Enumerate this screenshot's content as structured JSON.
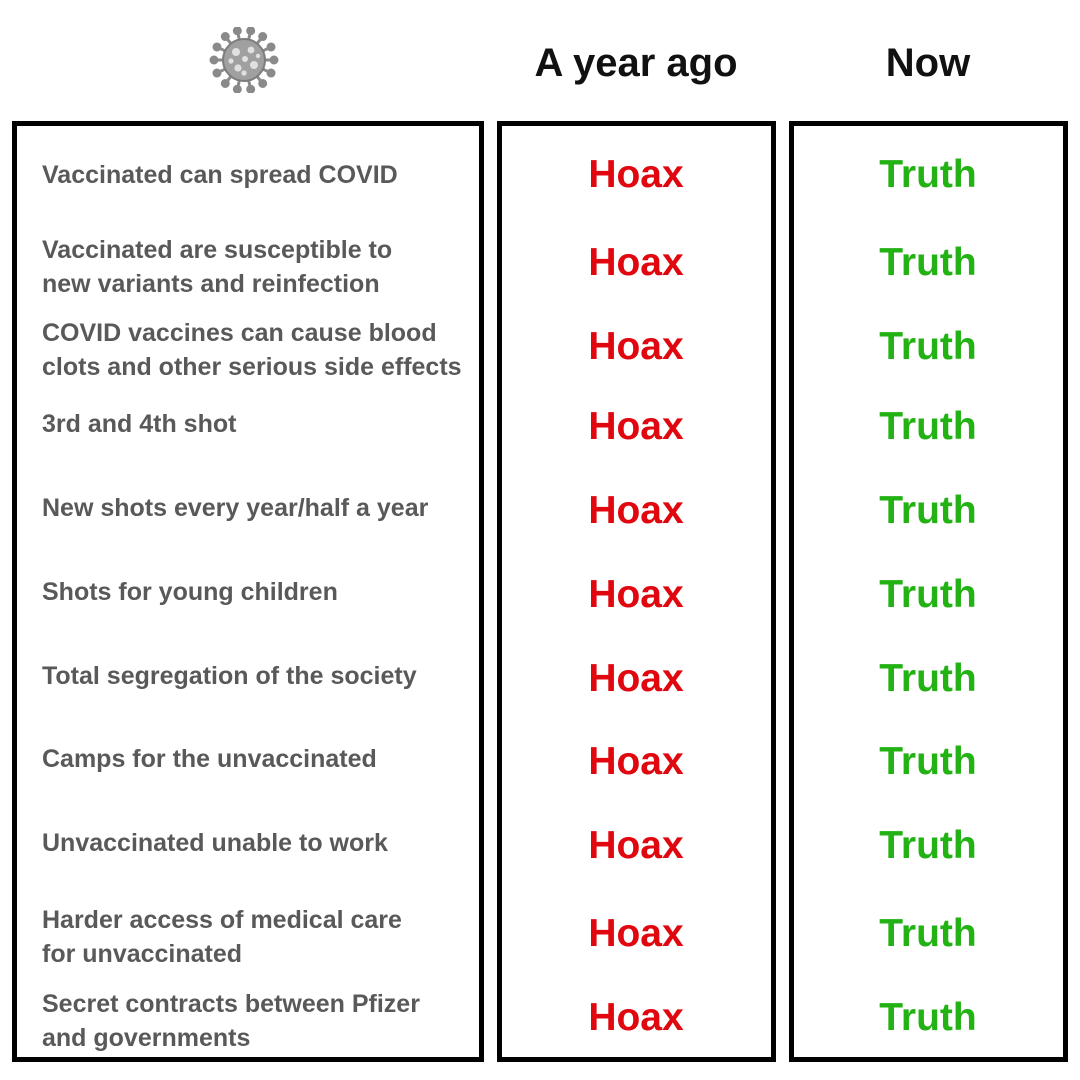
{
  "header": {
    "icon": "virus-icon",
    "col_before": "A year ago",
    "col_now": "Now"
  },
  "colors": {
    "hoax": "#e0070f",
    "truth": "#22b213",
    "claim_text": "#595959",
    "border": "#000000"
  },
  "rows": [
    {
      "claim": "Vaccinated can spread COVID",
      "before": "Hoax",
      "now": "Truth"
    },
    {
      "claim": "Vaccinated are susceptible to\nnew variants and reinfection",
      "before": "Hoax",
      "now": "Truth"
    },
    {
      "claim": "COVID vaccines can cause blood\nclots and other serious side effects",
      "before": "Hoax",
      "now": "Truth"
    },
    {
      "claim": "3rd and 4th shot",
      "before": "Hoax",
      "now": "Truth"
    },
    {
      "claim": "New shots every year/half a year",
      "before": "Hoax",
      "now": "Truth"
    },
    {
      "claim": "Shots for young children",
      "before": "Hoax",
      "now": "Truth"
    },
    {
      "claim": "Total segregation of the society",
      "before": "Hoax",
      "now": "Truth"
    },
    {
      "claim": "Camps for the unvaccinated",
      "before": "Hoax",
      "now": "Truth"
    },
    {
      "claim": "Unvaccinated unable to work",
      "before": "Hoax",
      "now": "Truth"
    },
    {
      "claim": "Harder access of medical care\nfor unvaccinated",
      "before": "Hoax",
      "now": "Truth"
    },
    {
      "claim": "Secret contracts between Pfizer\nand governments",
      "before": "Hoax",
      "now": "Truth"
    }
  ]
}
